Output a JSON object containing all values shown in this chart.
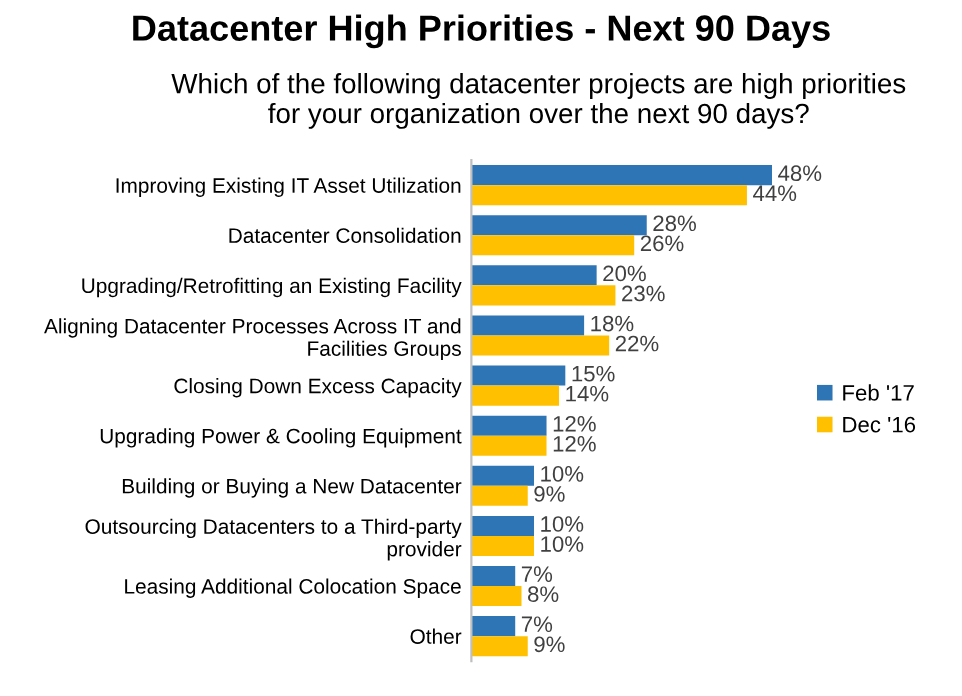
{
  "chart_data": {
    "type": "bar",
    "orientation": "horizontal",
    "title": "Datacenter High Priorities - Next 90 Days",
    "subtitle": "Which of the following datacenter projects are high priorities\nfor your organization over the next 90 days?",
    "categories": [
      "Improving Existing IT Asset Utilization",
      "Datacenter Consolidation",
      "Upgrading/Retrofitting an Existing Facility",
      "Aligning Datacenter Processes Across IT and\nFacilities Groups",
      "Closing Down Excess Capacity",
      "Upgrading Power & Cooling Equipment",
      "Building or Buying a New Datacenter",
      "Outsourcing Datacenters to a Third-party\nprovider",
      "Leasing Additional Colocation Space",
      "Other"
    ],
    "series": [
      {
        "name": "Feb '17",
        "color": "#2e75b6",
        "values": [
          48,
          28,
          20,
          18,
          15,
          12,
          10,
          10,
          7,
          7
        ],
        "value_labels": [
          "48%",
          "28%",
          "20%",
          "18%",
          "15%",
          "12%",
          "10%",
          "10%",
          "7%",
          "7%"
        ]
      },
      {
        "name": "Dec '16",
        "color": "#ffc000",
        "values": [
          44,
          26,
          23,
          22,
          14,
          12,
          9,
          10,
          8,
          9
        ],
        "value_labels": [
          "44%",
          "26%",
          "23%",
          "22%",
          "14%",
          "12%",
          "9%",
          "10%",
          "8%",
          "9%"
        ]
      }
    ],
    "legend": "right",
    "grid": false,
    "tick_labels": "y"
  }
}
